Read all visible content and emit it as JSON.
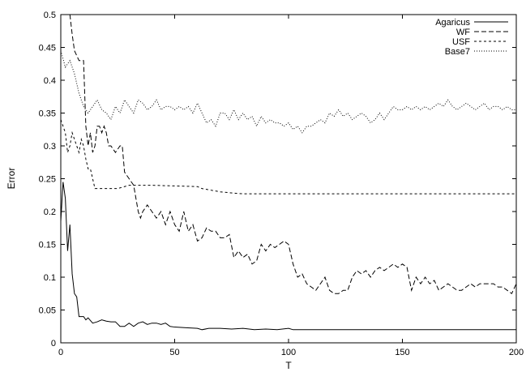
{
  "chart_data": {
    "type": "line",
    "xlabel": "T",
    "ylabel": "Error",
    "xlim": [
      0,
      200
    ],
    "ylim": [
      0,
      0.5
    ],
    "x_ticks": [
      "0",
      "50",
      "100",
      "150",
      "200"
    ],
    "y_ticks": [
      "0",
      "0.05",
      "0.1",
      "0.15",
      "0.2",
      "0.25",
      "0.3",
      "0.35",
      "0.4",
      "0.45",
      "0.5"
    ],
    "grid": false,
    "legend_position": "top-right",
    "series": [
      {
        "name": "Agaricus",
        "dash": "solid",
        "points": [
          [
            0,
            0.185
          ],
          [
            1,
            0.245
          ],
          [
            2,
            0.22
          ],
          [
            3,
            0.14
          ],
          [
            4,
            0.18
          ],
          [
            5,
            0.105
          ],
          [
            6,
            0.075
          ],
          [
            7,
            0.07
          ],
          [
            8,
            0.04
          ],
          [
            10,
            0.04
          ],
          [
            11,
            0.035
          ],
          [
            12,
            0.038
          ],
          [
            14,
            0.03
          ],
          [
            16,
            0.032
          ],
          [
            18,
            0.035
          ],
          [
            20,
            0.033
          ],
          [
            22,
            0.032
          ],
          [
            24,
            0.032
          ],
          [
            26,
            0.025
          ],
          [
            28,
            0.025
          ],
          [
            30,
            0.03
          ],
          [
            32,
            0.025
          ],
          [
            34,
            0.03
          ],
          [
            36,
            0.032
          ],
          [
            38,
            0.028
          ],
          [
            40,
            0.03
          ],
          [
            42,
            0.03
          ],
          [
            44,
            0.028
          ],
          [
            46,
            0.03
          ],
          [
            48,
            0.025
          ],
          [
            50,
            0.024
          ],
          [
            55,
            0.023
          ],
          [
            60,
            0.022
          ],
          [
            62,
            0.02
          ],
          [
            65,
            0.022
          ],
          [
            70,
            0.022
          ],
          [
            75,
            0.021
          ],
          [
            80,
            0.022
          ],
          [
            85,
            0.02
          ],
          [
            90,
            0.021
          ],
          [
            95,
            0.02
          ],
          [
            100,
            0.022
          ],
          [
            102,
            0.02
          ],
          [
            104,
            0.02
          ],
          [
            200,
            0.02
          ]
        ]
      },
      {
        "name": "WF",
        "dash": "long",
        "points": [
          [
            4,
            0.5
          ],
          [
            5,
            0.47
          ],
          [
            6,
            0.445
          ],
          [
            8,
            0.43
          ],
          [
            9,
            0.43
          ],
          [
            10,
            0.43
          ],
          [
            11,
            0.33
          ],
          [
            12,
            0.3
          ],
          [
            13,
            0.32
          ],
          [
            14,
            0.29
          ],
          [
            15,
            0.3
          ],
          [
            16,
            0.33
          ],
          [
            17,
            0.33
          ],
          [
            18,
            0.32
          ],
          [
            19,
            0.33
          ],
          [
            20,
            0.32
          ],
          [
            21,
            0.3
          ],
          [
            22,
            0.3
          ],
          [
            24,
            0.29
          ],
          [
            26,
            0.3
          ],
          [
            27,
            0.3
          ],
          [
            28,
            0.26
          ],
          [
            30,
            0.25
          ],
          [
            32,
            0.24
          ],
          [
            33,
            0.22
          ],
          [
            34,
            0.2
          ],
          [
            35,
            0.19
          ],
          [
            36,
            0.2
          ],
          [
            38,
            0.21
          ],
          [
            40,
            0.2
          ],
          [
            42,
            0.19
          ],
          [
            44,
            0.2
          ],
          [
            46,
            0.18
          ],
          [
            48,
            0.2
          ],
          [
            50,
            0.18
          ],
          [
            52,
            0.17
          ],
          [
            54,
            0.2
          ],
          [
            56,
            0.17
          ],
          [
            58,
            0.18
          ],
          [
            60,
            0.155
          ],
          [
            62,
            0.16
          ],
          [
            64,
            0.175
          ],
          [
            66,
            0.17
          ],
          [
            68,
            0.17
          ],
          [
            70,
            0.16
          ],
          [
            72,
            0.16
          ],
          [
            74,
            0.165
          ],
          [
            76,
            0.13
          ],
          [
            78,
            0.14
          ],
          [
            80,
            0.13
          ],
          [
            82,
            0.135
          ],
          [
            84,
            0.12
          ],
          [
            86,
            0.125
          ],
          [
            88,
            0.15
          ],
          [
            90,
            0.14
          ],
          [
            92,
            0.15
          ],
          [
            94,
            0.145
          ],
          [
            96,
            0.15
          ],
          [
            98,
            0.155
          ],
          [
            100,
            0.15
          ],
          [
            102,
            0.12
          ],
          [
            104,
            0.1
          ],
          [
            106,
            0.105
          ],
          [
            108,
            0.09
          ],
          [
            110,
            0.085
          ],
          [
            112,
            0.08
          ],
          [
            114,
            0.09
          ],
          [
            116,
            0.1
          ],
          [
            118,
            0.08
          ],
          [
            120,
            0.075
          ],
          [
            122,
            0.075
          ],
          [
            124,
            0.08
          ],
          [
            126,
            0.08
          ],
          [
            128,
            0.1
          ],
          [
            130,
            0.11
          ],
          [
            132,
            0.105
          ],
          [
            134,
            0.11
          ],
          [
            136,
            0.1
          ],
          [
            138,
            0.11
          ],
          [
            140,
            0.115
          ],
          [
            142,
            0.11
          ],
          [
            144,
            0.115
          ],
          [
            146,
            0.12
          ],
          [
            148,
            0.115
          ],
          [
            150,
            0.12
          ],
          [
            152,
            0.115
          ],
          [
            154,
            0.08
          ],
          [
            156,
            0.1
          ],
          [
            158,
            0.09
          ],
          [
            160,
            0.1
          ],
          [
            162,
            0.09
          ],
          [
            164,
            0.095
          ],
          [
            166,
            0.08
          ],
          [
            168,
            0.085
          ],
          [
            170,
            0.09
          ],
          [
            172,
            0.085
          ],
          [
            174,
            0.08
          ],
          [
            176,
            0.08
          ],
          [
            178,
            0.085
          ],
          [
            180,
            0.09
          ],
          [
            182,
            0.085
          ],
          [
            184,
            0.09
          ],
          [
            186,
            0.09
          ],
          [
            188,
            0.09
          ],
          [
            190,
            0.09
          ],
          [
            192,
            0.085
          ],
          [
            194,
            0.085
          ],
          [
            196,
            0.08
          ],
          [
            198,
            0.075
          ],
          [
            200,
            0.09
          ]
        ]
      },
      {
        "name": "USF",
        "dash": "medium",
        "points": [
          [
            0,
            0.34
          ],
          [
            1,
            0.33
          ],
          [
            2,
            0.32
          ],
          [
            3,
            0.29
          ],
          [
            4,
            0.3
          ],
          [
            5,
            0.32
          ],
          [
            6,
            0.31
          ],
          [
            7,
            0.3
          ],
          [
            8,
            0.29
          ],
          [
            9,
            0.31
          ],
          [
            10,
            0.3
          ],
          [
            11,
            0.28
          ],
          [
            12,
            0.265
          ],
          [
            13,
            0.265
          ],
          [
            14,
            0.25
          ],
          [
            15,
            0.235
          ],
          [
            20,
            0.235
          ],
          [
            25,
            0.235
          ],
          [
            30,
            0.24
          ],
          [
            40,
            0.24
          ],
          [
            60,
            0.238
          ],
          [
            62,
            0.235
          ],
          [
            70,
            0.23
          ],
          [
            76,
            0.228
          ],
          [
            80,
            0.227
          ],
          [
            200,
            0.227
          ]
        ]
      },
      {
        "name": "Base7",
        "dash": "dotted",
        "points": [
          [
            0,
            0.445
          ],
          [
            2,
            0.42
          ],
          [
            4,
            0.43
          ],
          [
            6,
            0.41
          ],
          [
            8,
            0.38
          ],
          [
            10,
            0.36
          ],
          [
            12,
            0.35
          ],
          [
            14,
            0.36
          ],
          [
            16,
            0.37
          ],
          [
            18,
            0.355
          ],
          [
            20,
            0.35
          ],
          [
            22,
            0.34
          ],
          [
            24,
            0.36
          ],
          [
            26,
            0.35
          ],
          [
            28,
            0.37
          ],
          [
            30,
            0.36
          ],
          [
            32,
            0.35
          ],
          [
            34,
            0.37
          ],
          [
            36,
            0.365
          ],
          [
            38,
            0.355
          ],
          [
            40,
            0.36
          ],
          [
            42,
            0.37
          ],
          [
            44,
            0.355
          ],
          [
            46,
            0.36
          ],
          [
            48,
            0.36
          ],
          [
            50,
            0.355
          ],
          [
            52,
            0.36
          ],
          [
            54,
            0.355
          ],
          [
            56,
            0.36
          ],
          [
            58,
            0.35
          ],
          [
            60,
            0.365
          ],
          [
            62,
            0.35
          ],
          [
            64,
            0.335
          ],
          [
            66,
            0.34
          ],
          [
            68,
            0.33
          ],
          [
            70,
            0.35
          ],
          [
            72,
            0.35
          ],
          [
            74,
            0.34
          ],
          [
            76,
            0.355
          ],
          [
            78,
            0.34
          ],
          [
            80,
            0.35
          ],
          [
            82,
            0.34
          ],
          [
            84,
            0.345
          ],
          [
            86,
            0.33
          ],
          [
            88,
            0.345
          ],
          [
            90,
            0.335
          ],
          [
            92,
            0.34
          ],
          [
            94,
            0.335
          ],
          [
            96,
            0.335
          ],
          [
            98,
            0.33
          ],
          [
            100,
            0.335
          ],
          [
            102,
            0.325
          ],
          [
            104,
            0.33
          ],
          [
            106,
            0.32
          ],
          [
            108,
            0.33
          ],
          [
            110,
            0.33
          ],
          [
            112,
            0.335
          ],
          [
            114,
            0.34
          ],
          [
            116,
            0.335
          ],
          [
            118,
            0.35
          ],
          [
            120,
            0.345
          ],
          [
            122,
            0.355
          ],
          [
            124,
            0.345
          ],
          [
            126,
            0.35
          ],
          [
            128,
            0.34
          ],
          [
            130,
            0.345
          ],
          [
            132,
            0.35
          ],
          [
            134,
            0.345
          ],
          [
            136,
            0.335
          ],
          [
            138,
            0.34
          ],
          [
            140,
            0.35
          ],
          [
            142,
            0.34
          ],
          [
            144,
            0.35
          ],
          [
            146,
            0.36
          ],
          [
            148,
            0.355
          ],
          [
            150,
            0.355
          ],
          [
            152,
            0.36
          ],
          [
            154,
            0.355
          ],
          [
            156,
            0.36
          ],
          [
            158,
            0.355
          ],
          [
            160,
            0.36
          ],
          [
            162,
            0.355
          ],
          [
            164,
            0.36
          ],
          [
            166,
            0.365
          ],
          [
            168,
            0.36
          ],
          [
            170,
            0.37
          ],
          [
            172,
            0.36
          ],
          [
            174,
            0.355
          ],
          [
            176,
            0.36
          ],
          [
            178,
            0.365
          ],
          [
            180,
            0.36
          ],
          [
            182,
            0.355
          ],
          [
            184,
            0.36
          ],
          [
            186,
            0.365
          ],
          [
            188,
            0.355
          ],
          [
            190,
            0.36
          ],
          [
            192,
            0.36
          ],
          [
            194,
            0.355
          ],
          [
            196,
            0.36
          ],
          [
            198,
            0.355
          ],
          [
            200,
            0.355
          ]
        ]
      }
    ]
  }
}
